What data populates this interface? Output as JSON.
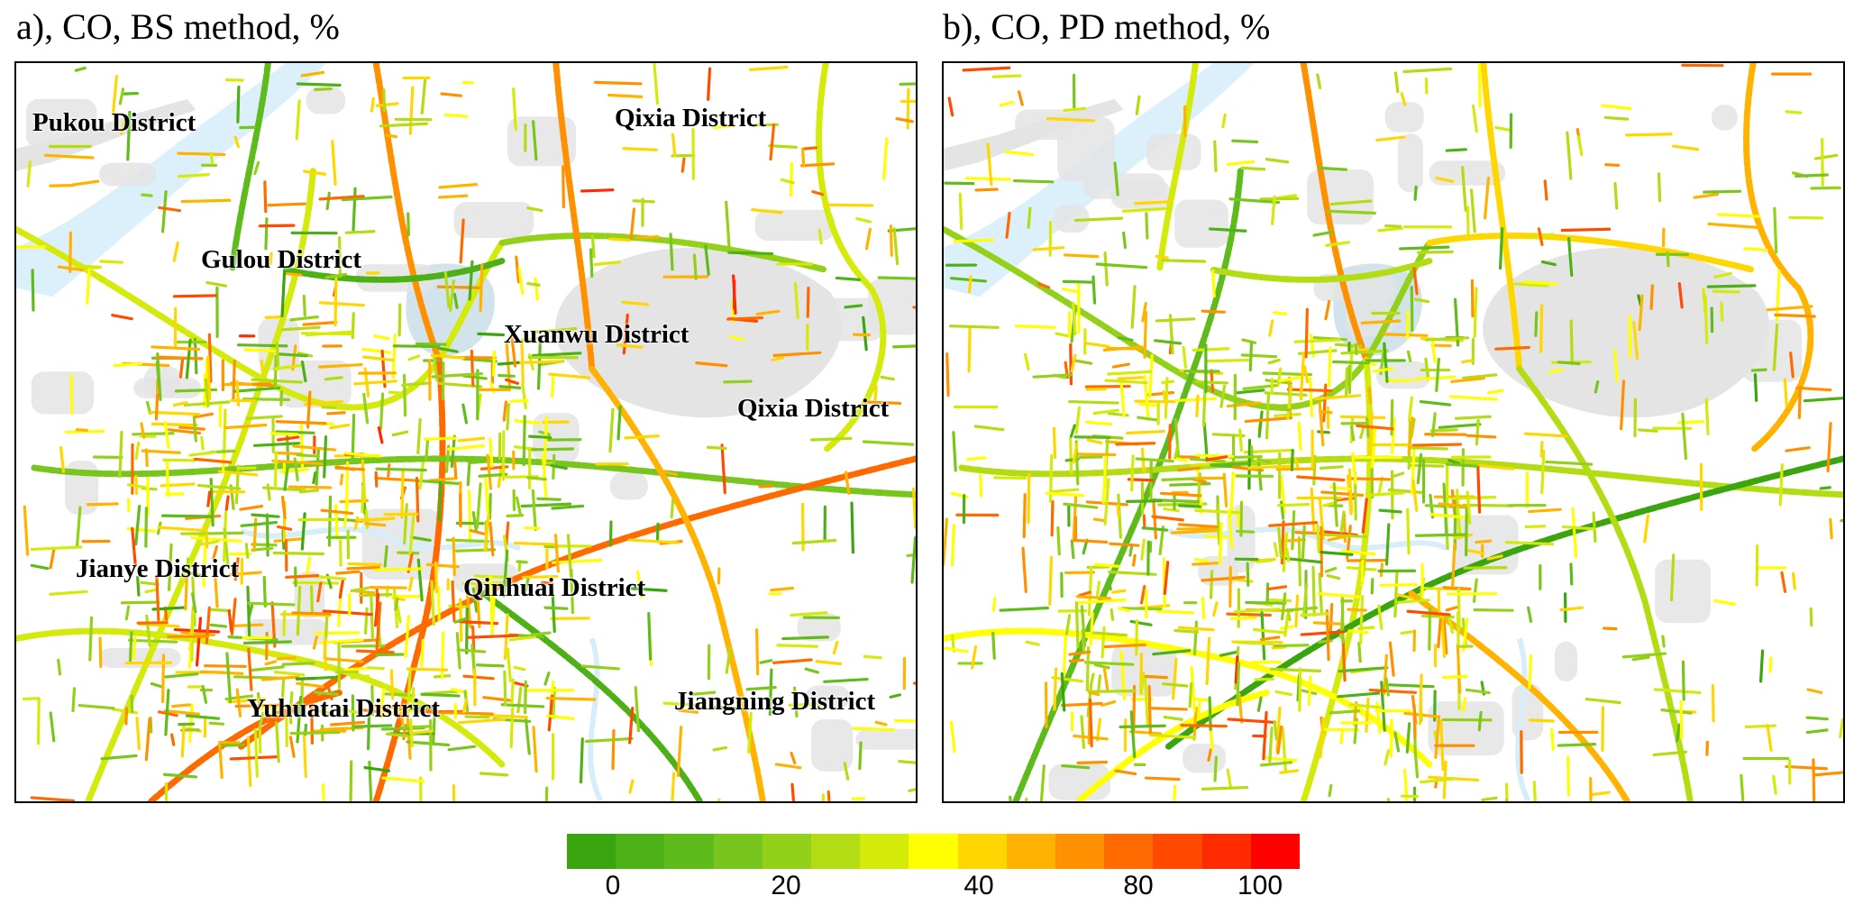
{
  "panels": [
    {
      "id": "a",
      "title": "a), CO, BS method, %",
      "district_labels": [
        {
          "text": "Pukou District"
        },
        {
          "text": "Qixia District"
        },
        {
          "text": "Gulou District"
        },
        {
          "text": "Xuanwu District"
        },
        {
          "text": "Qixia District"
        },
        {
          "text": "Jianye District"
        },
        {
          "text": "Qinhuai District"
        },
        {
          "text": "Yuhuatai District"
        },
        {
          "text": "Jiangning District"
        }
      ]
    },
    {
      "id": "b",
      "title": "b), CO, PD method, %",
      "district_labels": []
    }
  ],
  "colorbar": {
    "colors": [
      "#3aa50f",
      "#4cb016",
      "#5fba1b",
      "#77c51d",
      "#93d01a",
      "#b3dc15",
      "#d4ea0a",
      "#ffff00",
      "#ffd700",
      "#ffb300",
      "#ff9000",
      "#ff6a00",
      "#ff4a00",
      "#ff2a00",
      "#ff0000"
    ],
    "tick_labels": [
      "0",
      "20",
      "40",
      "80",
      "100"
    ]
  },
  "map_colors": {
    "water": "#dcf0fb",
    "land_grey": "#e4e4e4",
    "background": "#ffffff"
  }
}
